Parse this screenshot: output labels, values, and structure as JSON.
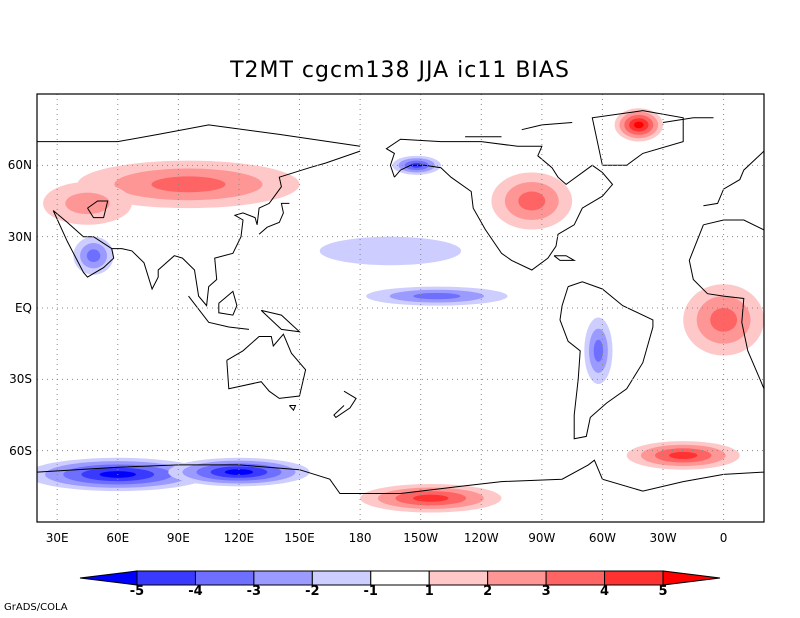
{
  "title": "T2MT cgcm138 JJA ic11 BIAS",
  "footer": "GrADS/COLA",
  "map": {
    "projection": "latlon",
    "lon_range": [
      20,
      380
    ],
    "lat_range": [
      -90,
      90
    ],
    "grid": "dotted",
    "lon_ticks": [
      {
        "label": "30E",
        "lon": 30
      },
      {
        "label": "60E",
        "lon": 60
      },
      {
        "label": "90E",
        "lon": 90
      },
      {
        "label": "120E",
        "lon": 120
      },
      {
        "label": "150E",
        "lon": 150
      },
      {
        "label": "180",
        "lon": 180
      },
      {
        "label": "150W",
        "lon": 210
      },
      {
        "label": "120W",
        "lon": 240
      },
      {
        "label": "90W",
        "lon": 270
      },
      {
        "label": "60W",
        "lon": 300
      },
      {
        "label": "30W",
        "lon": 330
      },
      {
        "label": "0",
        "lon": 360
      }
    ],
    "lat_ticks": [
      {
        "label": "60N",
        "lat": 60
      },
      {
        "label": "30N",
        "lat": 30
      },
      {
        "label": "EQ",
        "lat": 0
      },
      {
        "label": "30S",
        "lat": -30
      },
      {
        "label": "60S",
        "lat": -60
      }
    ]
  },
  "colorbar": {
    "labels": [
      "-5",
      "-4",
      "-3",
      "-2",
      "-1",
      "1",
      "2",
      "3",
      "4",
      "5"
    ],
    "colors": [
      "#0000ff",
      "#3a3aff",
      "#6e6eff",
      "#9a9aff",
      "#cdcdff",
      "#ffffff",
      "#ffc8c8",
      "#ff9696",
      "#ff6464",
      "#ff3232",
      "#ff0000"
    ]
  },
  "anomalies": [
    {
      "id": "antarctic-cold",
      "value": -5,
      "lon": 60,
      "lat": -70,
      "rlon": 45,
      "rlat": 7
    },
    {
      "id": "antarctic-cold-2",
      "value": -5,
      "lon": 120,
      "lat": -69,
      "rlon": 35,
      "rlat": 6
    },
    {
      "id": "ross-warm",
      "value": 4,
      "lon": 215,
      "lat": -80,
      "rlon": 35,
      "rlat": 6
    },
    {
      "id": "weddell-warm",
      "value": 4,
      "lon": 340,
      "lat": -62,
      "rlon": 28,
      "rlat": 6
    },
    {
      "id": "greenland-warm",
      "value": 5,
      "lon": 318,
      "lat": 77,
      "rlon": 12,
      "rlat": 7
    },
    {
      "id": "eurasia-warm",
      "value": 3,
      "lon": 95,
      "lat": 52,
      "rlon": 55,
      "rlat": 10
    },
    {
      "id": "eurasia-warm-2",
      "value": 2,
      "lon": 45,
      "lat": 44,
      "rlon": 22,
      "rlat": 9
    },
    {
      "id": "na-warm",
      "value": 3,
      "lon": 265,
      "lat": 45,
      "rlon": 20,
      "rlat": 12
    },
    {
      "id": "alaska-cold",
      "value": -4,
      "lon": 208,
      "lat": 60,
      "rlon": 12,
      "rlat": 4
    },
    {
      "id": "pacific-eq-cold",
      "value": -3,
      "lon": 218,
      "lat": 5,
      "rlon": 35,
      "rlat": 4
    },
    {
      "id": "pacific-cold",
      "value": -1,
      "lon": 195,
      "lat": 24,
      "rlon": 35,
      "rlat": 6
    },
    {
      "id": "safrica-warm",
      "value": 3,
      "lon": 360,
      "lat": -5,
      "rlon": 20,
      "rlat": 15
    },
    {
      "id": "samerica-cold",
      "value": -3,
      "lon": 298,
      "lat": -18,
      "rlon": 7,
      "rlat": 14
    },
    {
      "id": "arabia-cold",
      "value": -3,
      "lon": 48,
      "lat": 22,
      "rlon": 10,
      "rlat": 8
    }
  ]
}
